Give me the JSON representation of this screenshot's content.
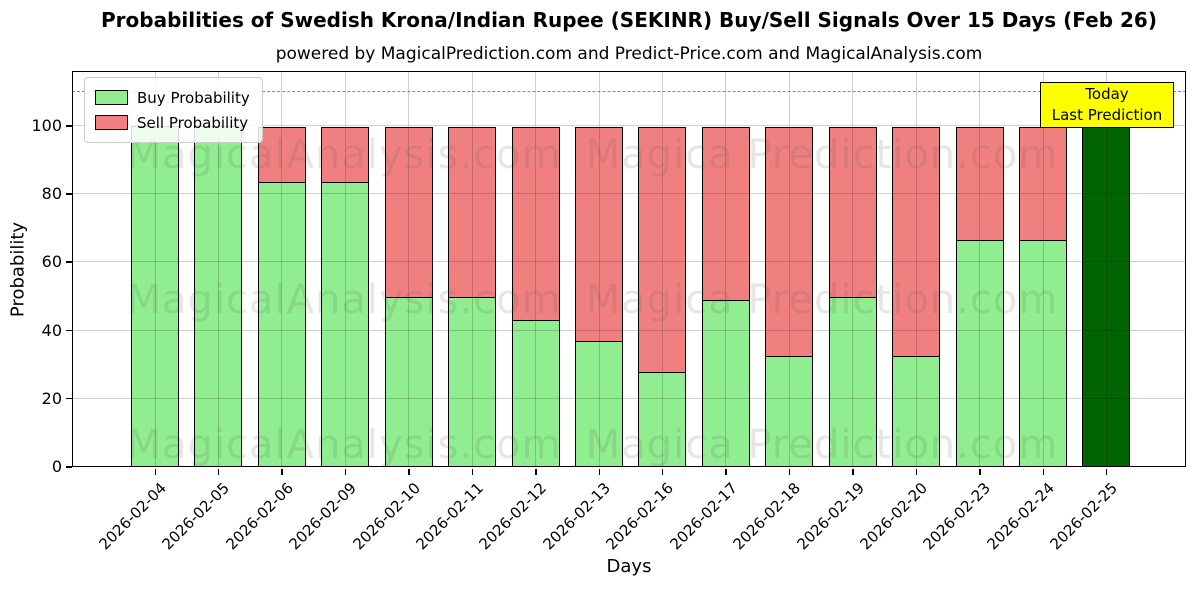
{
  "chart_data": {
    "type": "bar",
    "stacked": true,
    "title": "Probabilities of Swedish Krona/Indian Rupee (SEKINR) Buy/Sell Signals Over 15 Days (Feb 26)",
    "subtitle": "powered by MagicalPrediction.com and Predict-Price.com and MagicalAnalysis.com",
    "xlabel": "Days",
    "ylabel": "Probability",
    "categories": [
      "2026-02-04",
      "2026-02-05",
      "2026-02-06",
      "2026-02-09",
      "2026-02-10",
      "2026-02-11",
      "2026-02-12",
      "2026-02-13",
      "2026-02-16",
      "2026-02-17",
      "2026-02-18",
      "2026-02-19",
      "2026-02-20",
      "2026-02-23",
      "2026-02-24",
      "2026-02-25"
    ],
    "series": [
      {
        "name": "Buy Probability",
        "color": "#90ee90",
        "values": [
          100,
          100,
          83.5,
          83.5,
          50,
          50,
          43,
          37,
          28,
          49,
          32.5,
          50,
          32.5,
          66.5,
          66.5,
          100
        ]
      },
      {
        "name": "Sell Probability",
        "color": "#f08080",
        "values": [
          0,
          0,
          16.5,
          16.5,
          50,
          50,
          57,
          63,
          72,
          51,
          67.5,
          50,
          67.5,
          33.5,
          33.5,
          0
        ]
      }
    ],
    "yticks": [
      0,
      20,
      40,
      60,
      80,
      100
    ],
    "ylim": [
      0,
      116
    ],
    "grid": true,
    "legend_position": "upper left",
    "bar_edge_color": "#000000",
    "dashed_hline": {
      "y": 110,
      "color": "#8a8a8a",
      "style": "dashed"
    },
    "today_bar": {
      "index": 15,
      "color": "#006400"
    }
  },
  "annotation": {
    "line1": "Today",
    "line2": "Last Prediction",
    "bg_color": "#ffff00"
  },
  "watermarks": {
    "left_text": "MagicalAnalysis.com",
    "right_text": "Magica Prediction.com"
  }
}
